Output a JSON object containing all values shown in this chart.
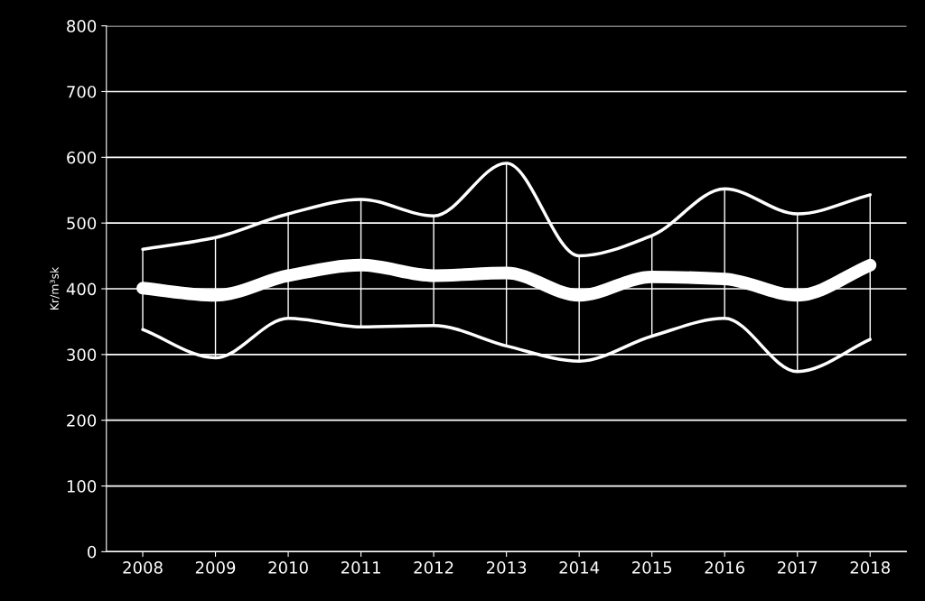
{
  "chart_data": {
    "type": "line",
    "ylabel": "Kr/m³sk",
    "categories": [
      "2008",
      "2009",
      "2010",
      "2011",
      "2012",
      "2013",
      "2014",
      "2015",
      "2016",
      "2017",
      "2018"
    ],
    "ylim": [
      0,
      800
    ],
    "yticks": [
      0,
      100,
      200,
      300,
      400,
      500,
      600,
      700,
      800
    ],
    "grid": "y",
    "marker": "none",
    "series": [
      {
        "color": "#ffffff",
        "values": [
          460,
          478,
          514,
          536,
          511,
          591,
          450,
          481,
          552,
          514,
          543
        ]
      },
      {
        "color": "#ffffff",
        "values": [
          401,
          390,
          420,
          436,
          420,
          424,
          390,
          418,
          415,
          390,
          436
        ],
        "errors": [
          [
            338,
            460
          ],
          [
            295,
            478
          ],
          [
            355,
            514
          ],
          [
            342,
            536
          ],
          [
            344,
            511
          ],
          [
            313,
            591
          ],
          [
            290,
            450
          ],
          [
            328,
            481
          ],
          [
            355,
            552
          ],
          [
            274,
            514
          ],
          [
            323,
            543
          ]
        ]
      },
      {
        "color": "#ffffff",
        "values": [
          338,
          295,
          355,
          342,
          344,
          313,
          290,
          328,
          355,
          274,
          323
        ]
      }
    ]
  }
}
